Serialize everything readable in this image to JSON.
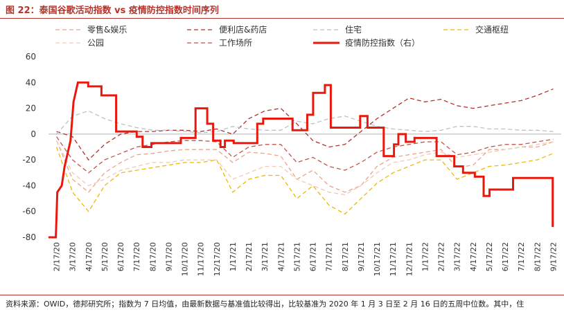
{
  "header": {
    "title": "图 22：泰国谷歌活动指数 vs 疫情防控指数时间序列"
  },
  "footer": {
    "source": "资料来源：OWID，德邦研究所；指数为 7 日均值，由最新数据与基准值比较得出，比较基准为 2020 年 1 月 3 日至 2 月 16 日的五周中位数。其中，住"
  },
  "chart_data": {
    "type": "line",
    "title": "图 22：泰国谷歌活动指数 vs 疫情防控指数时间序列",
    "ylim": [
      -80,
      60
    ],
    "yticks": [
      60,
      40,
      20,
      0,
      -20,
      -40,
      -60,
      -80
    ],
    "x_ticks": [
      "2/17/20",
      "3/17/20",
      "4/17/20",
      "5/17/20",
      "6/17/20",
      "7/17/20",
      "8/17/20",
      "9/17/20",
      "10/17/20",
      "11/17/20",
      "12/17/20",
      "1/17/21",
      "2/17/21",
      "3/17/21",
      "4/17/21",
      "5/17/21",
      "6/17/21",
      "7/17/21",
      "8/17/21",
      "9/17/21",
      "10/17/21",
      "11/17/21",
      "12/17/21",
      "1/17/22",
      "2/17/22",
      "3/17/22",
      "4/17/22",
      "5/17/22",
      "6/17/22",
      "7/17/22",
      "8/17/22",
      "9/17/22"
    ],
    "grid": false,
    "legend_position": "top",
    "series": [
      {
        "name": "零售&娱乐",
        "color": "#e8a48a",
        "dash": "6,4",
        "width": 1.3,
        "values": [
          -5,
          -35,
          -45,
          -30,
          -22,
          -16,
          -15,
          -13,
          -12,
          -12,
          -12,
          -22,
          -14,
          -15,
          -17,
          -35,
          -28,
          -40,
          -45,
          -40,
          -25,
          -18,
          -16,
          -14,
          -12,
          -26,
          -24,
          -12,
          -12,
          -10,
          -10,
          -6
        ]
      },
      {
        "name": "便利店&药店",
        "color": "#b0302c",
        "dash": "6,4",
        "width": 1.3,
        "values": [
          2,
          -2,
          -20,
          -8,
          0,
          2,
          2,
          3,
          3,
          2,
          4,
          0,
          12,
          18,
          20,
          8,
          -5,
          -10,
          -8,
          2,
          12,
          20,
          28,
          25,
          27,
          22,
          20,
          22,
          24,
          26,
          30,
          35
        ]
      },
      {
        "name": "住宅",
        "color": "#b9c2c4",
        "dash": "6,4",
        "width": 1.3,
        "values": [
          0,
          14,
          18,
          12,
          8,
          5,
          3,
          3,
          2,
          1,
          2,
          6,
          4,
          3,
          3,
          10,
          8,
          12,
          14,
          10,
          6,
          4,
          3,
          2,
          3,
          6,
          6,
          4,
          4,
          3,
          3,
          2
        ]
      },
      {
        "name": "交通枢纽",
        "color": "#f0b800",
        "dash": "6,4",
        "width": 1.3,
        "values": [
          -10,
          -45,
          -60,
          -40,
          -30,
          -28,
          -26,
          -24,
          -22,
          -22,
          -20,
          -45,
          -35,
          -32,
          -32,
          -50,
          -40,
          -55,
          -62,
          -50,
          -38,
          -30,
          -25,
          -20,
          -20,
          -35,
          -30,
          -25,
          -24,
          -22,
          -20,
          -15
        ]
      },
      {
        "name": "公园",
        "color": "#f2c9b4",
        "dash": "6,4",
        "width": 1.3,
        "values": [
          -5,
          -30,
          -40,
          -35,
          -28,
          -25,
          -22,
          -22,
          -20,
          -20,
          -20,
          -35,
          -30,
          -25,
          -25,
          -35,
          -40,
          -45,
          -47,
          -40,
          -30,
          -22,
          -20,
          -16,
          -14,
          -18,
          -16,
          -14,
          -12,
          -10,
          -8,
          -6
        ]
      },
      {
        "name": "工作场所",
        "color": "#c4524a",
        "dash": "6,4",
        "width": 1.3,
        "values": [
          -2,
          -20,
          -30,
          -20,
          -15,
          -10,
          -8,
          -6,
          -5,
          -5,
          -6,
          -18,
          -10,
          -8,
          -8,
          -22,
          -18,
          -25,
          -28,
          -22,
          -14,
          -10,
          -8,
          -6,
          -6,
          -16,
          -14,
          -10,
          -8,
          -8,
          -6,
          -4
        ]
      }
    ],
    "policy_series": {
      "name": "疫情防控指数（右）",
      "color": "#e8190c",
      "width": 3,
      "steps": [
        [
          0,
          -80
        ],
        [
          0.25,
          -80
        ],
        [
          0.3,
          -45
        ],
        [
          0.45,
          -40
        ],
        [
          0.55,
          -25
        ],
        [
          0.75,
          -5
        ],
        [
          0.85,
          25
        ],
        [
          1.0,
          40
        ],
        [
          1.35,
          40
        ],
        [
          1.35,
          37
        ],
        [
          1.8,
          37
        ],
        [
          1.8,
          30
        ],
        [
          2.3,
          30
        ],
        [
          2.3,
          2
        ],
        [
          3.0,
          2
        ],
        [
          3.0,
          -2
        ],
        [
          3.2,
          -2
        ],
        [
          3.2,
          -10
        ],
        [
          3.5,
          -10
        ],
        [
          3.5,
          -7
        ],
        [
          4.5,
          -7
        ],
        [
          4.5,
          -3
        ],
        [
          5.0,
          -3
        ],
        [
          5.0,
          20
        ],
        [
          5.4,
          20
        ],
        [
          5.4,
          8
        ],
        [
          5.6,
          8
        ],
        [
          5.6,
          -5
        ],
        [
          5.85,
          -5
        ],
        [
          5.85,
          -10
        ],
        [
          6.0,
          -10
        ],
        [
          6.0,
          -5
        ],
        [
          6.3,
          -5
        ],
        [
          6.3,
          -7
        ],
        [
          7.1,
          -7
        ],
        [
          7.1,
          8
        ],
        [
          7.3,
          8
        ],
        [
          7.3,
          12
        ],
        [
          8.3,
          12
        ],
        [
          8.3,
          3
        ],
        [
          8.8,
          3
        ],
        [
          8.8,
          15
        ],
        [
          9.0,
          15
        ],
        [
          9.0,
          32
        ],
        [
          9.4,
          32
        ],
        [
          9.4,
          38
        ],
        [
          9.6,
          38
        ],
        [
          9.6,
          5
        ],
        [
          10.6,
          5
        ],
        [
          10.6,
          14
        ],
        [
          10.85,
          14
        ],
        [
          10.85,
          5
        ],
        [
          11.4,
          5
        ],
        [
          11.4,
          -17
        ],
        [
          11.75,
          -17
        ],
        [
          11.75,
          -8
        ],
        [
          11.9,
          -8
        ],
        [
          11.9,
          0
        ],
        [
          12.15,
          0
        ],
        [
          12.15,
          -6
        ],
        [
          12.45,
          -6
        ],
        [
          12.45,
          -3
        ],
        [
          13.2,
          -3
        ],
        [
          13.2,
          -17
        ],
        [
          13.8,
          -17
        ],
        [
          13.8,
          -25
        ],
        [
          14.1,
          -25
        ],
        [
          14.1,
          -30
        ],
        [
          14.5,
          -30
        ],
        [
          14.5,
          -33
        ],
        [
          14.8,
          -33
        ],
        [
          14.8,
          -48
        ],
        [
          15.0,
          -48
        ],
        [
          15.0,
          -43
        ],
        [
          15.8,
          -43
        ],
        [
          15.8,
          -34
        ],
        [
          17.15,
          -34
        ],
        [
          17.15,
          -72
        ]
      ]
    }
  }
}
